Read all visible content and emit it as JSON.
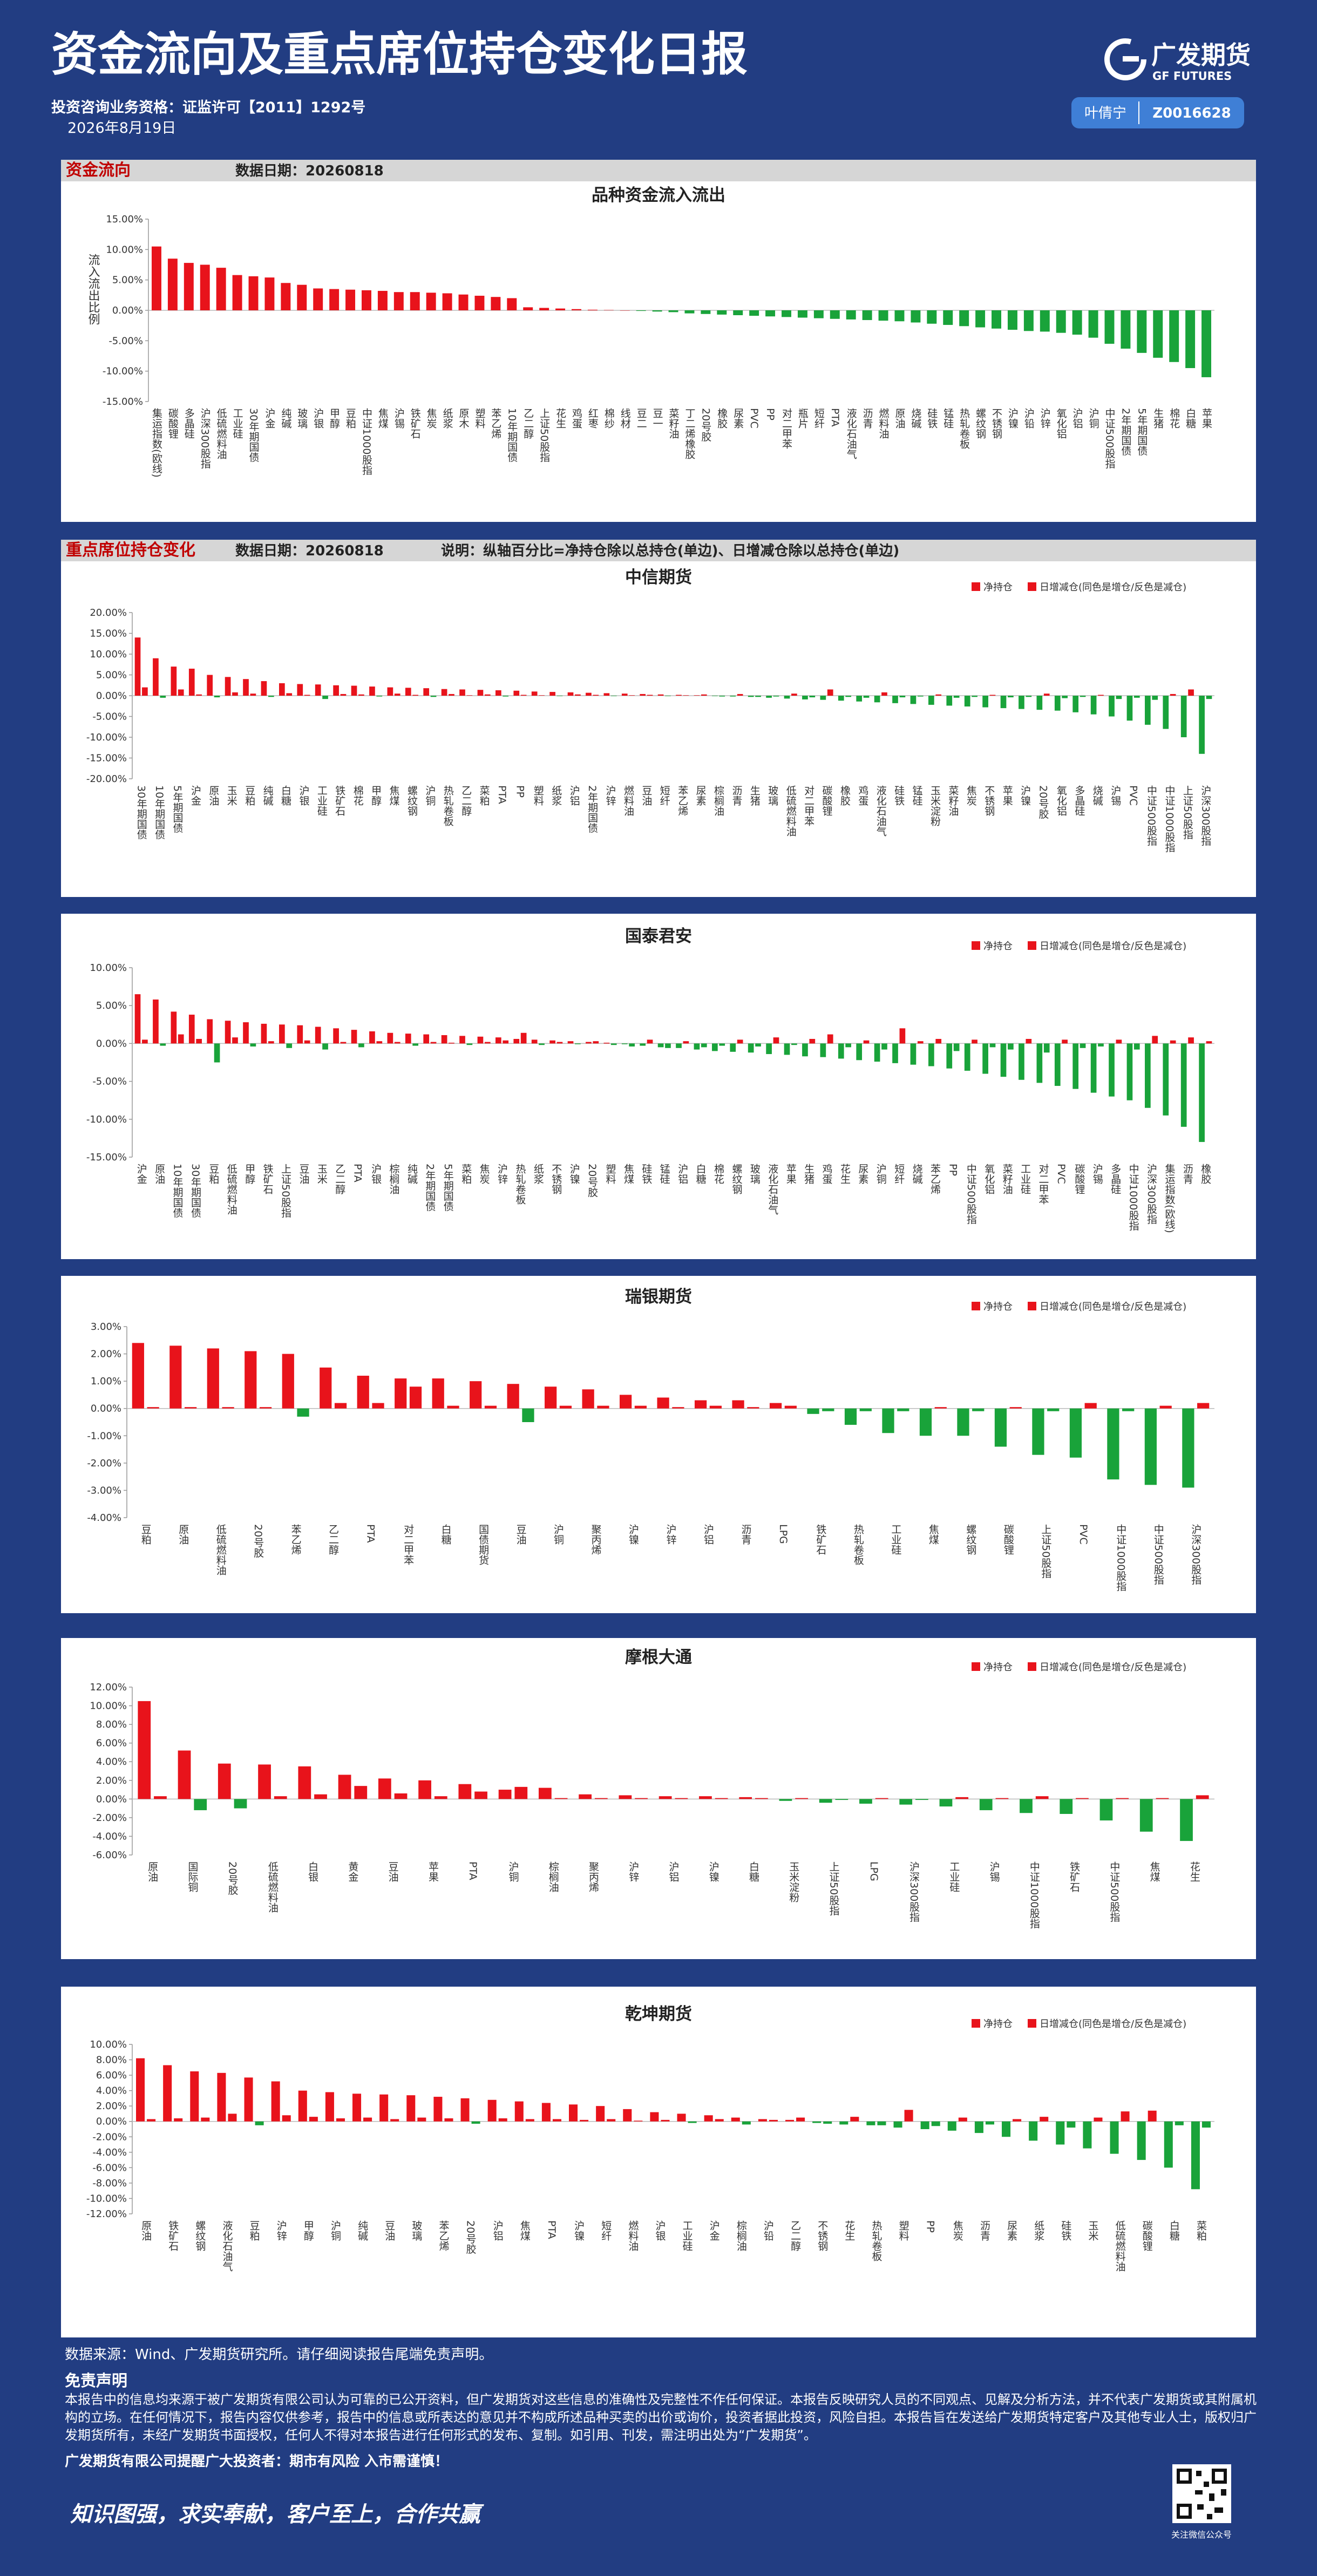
{
  "header": {
    "title": "资金流向及重点席位持仓变化日报",
    "qualification": "投资咨询业务资格：证监许可【2011】1292号",
    "date": "2026年8月19日",
    "logo_cn": "广发期货",
    "logo_en": "GF FUTURES",
    "analyst": "叶倩宁",
    "analyst_id": "Z0016628"
  },
  "sections": [
    {
      "title": "资金流向",
      "date_label": "数据日期：20260818"
    },
    {
      "title": "重点席位持仓变化",
      "date_label": "数据日期：20260818",
      "note": "说明：纵轴百分比=净持仓除以总持仓(单边)、日增减仓除以总持仓(单边)"
    }
  ],
  "chart_data": [
    {
      "type": "bar",
      "title": "品种资金流入流出",
      "y_label": "流入流出比例",
      "color": "#e8131b",
      "negative_color": "#19a33a",
      "ylim": [
        -15,
        15
      ],
      "yticks": [
        {
          "value": 15,
          "label": "15.00%"
        },
        {
          "value": 10,
          "label": "10.00%"
        },
        {
          "value": 5,
          "label": "5.00%"
        },
        {
          "value": 0,
          "label": "0.00%"
        },
        {
          "value": -5,
          "label": "-5.00%"
        },
        {
          "value": -10,
          "label": "-10.00%"
        },
        {
          "value": -15,
          "label": "-15.00%"
        }
      ],
      "categories": [
        "集运指数(欧线)",
        "碳酸锂",
        "多晶硅",
        "沪深300股指",
        "低硫燃料油",
        "工业硅",
        "30年期国债",
        "沪金",
        "纯碱",
        "玻璃",
        "沪银",
        "甲醇",
        "豆粕",
        "中证1000股指",
        "焦煤",
        "沪锡",
        "铁矿石",
        "焦炭",
        "纸浆",
        "原木",
        "塑料",
        "苯乙烯",
        "10年期国债",
        "乙二醇",
        "上证50股指",
        "花生",
        "鸡蛋",
        "红枣",
        "棉纱",
        "线材",
        "豆二",
        "豆一",
        "菜籽油",
        "丁二烯橡胶",
        "20号胶",
        "橡胶",
        "尿素",
        "PVC",
        "PP",
        "对二甲苯",
        "瓶片",
        "短纤",
        "PTA",
        "液化石油气",
        "沥青",
        "燃料油",
        "原油",
        "烧碱",
        "硅铁",
        "锰硅",
        "热轧卷板",
        "螺纹钢",
        "不锈钢",
        "沪镍",
        "沪铅",
        "沪锌",
        "氧化铝",
        "沪铝",
        "沪铜",
        "中证500股指",
        "2年期国债",
        "5年期国债",
        "生猪",
        "棉花",
        "白糖",
        "苹果"
      ],
      "values": [
        10.5,
        8.5,
        7.8,
        7.5,
        7,
        5.8,
        5.6,
        5.4,
        4.5,
        4.2,
        3.6,
        3.5,
        3.4,
        3.3,
        3.2,
        3.0,
        3.0,
        2.9,
        2.8,
        2.6,
        2.4,
        2.2,
        2.0,
        0.5,
        0.4,
        0.3,
        0.2,
        0.1,
        0.05,
        0,
        -0.1,
        -0.2,
        -0.3,
        -0.5,
        -0.6,
        -0.7,
        -0.8,
        -0.9,
        -1.0,
        -1.1,
        -1.2,
        -1.3,
        -1.4,
        -1.5,
        -1.6,
        -1.7,
        -1.8,
        -2.0,
        -2.2,
        -2.4,
        -2.6,
        -2.8,
        -3.0,
        -3.2,
        -3.4,
        -3.5,
        -3.7,
        -4.0,
        -4.5,
        -5.5,
        -6.3,
        -7.0,
        -7.8,
        -8.5,
        -9.5,
        -11.0
      ]
    },
    {
      "type": "bar",
      "title": "中信期货",
      "legend": "upper right",
      "negative_color": "#19a33a",
      "ylim": [
        -20,
        20
      ],
      "yticks": [
        {
          "value": 20,
          "label": "20.00%"
        },
        {
          "value": 15,
          "label": "15.00%"
        },
        {
          "value": 10,
          "label": "10.00%"
        },
        {
          "value": 5,
          "label": "5.00%"
        },
        {
          "value": 0,
          "label": "0.00%"
        },
        {
          "value": -5,
          "label": "-5.00%"
        },
        {
          "value": -10,
          "label": "-10.00%"
        },
        {
          "value": -15,
          "label": "-15.00%"
        },
        {
          "value": -20,
          "label": "-20.00%"
        }
      ],
      "categories": [
        "30年期国债",
        "10年期国债",
        "5年期国债",
        "沪金",
        "原油",
        "玉米",
        "豆粕",
        "纯碱",
        "白糖",
        "沪银",
        "工业硅",
        "铁矿石",
        "棉花",
        "甲醇",
        "焦煤",
        "螺纹钢",
        "沪铜",
        "热轧卷板",
        "乙二醇",
        "菜粕",
        "PTA",
        "PP",
        "塑料",
        "纸浆",
        "沪铝",
        "2年期国债",
        "沪锌",
        "燃料油",
        "豆油",
        "短纤",
        "苯乙烯",
        "尿素",
        "棕榈油",
        "沥青",
        "生猪",
        "玻璃",
        "低硫燃料油",
        "对二甲苯",
        "碳酸锂",
        "橡胶",
        "鸡蛋",
        "液化石油气",
        "硅铁",
        "锰硅",
        "玉米淀粉",
        "菜籽油",
        "焦炭",
        "不锈钢",
        "苹果",
        "沪镍",
        "20号胶",
        "氧化铝",
        "多晶硅",
        "烧碱",
        "沪锡",
        "PVC",
        "中证500股指",
        "中证1000股指",
        "上证50股指",
        "沪深300股指"
      ],
      "series": [
        {
          "name": "净持仓",
          "color": "#e8131b",
          "values": [
            14,
            9,
            7,
            6.5,
            5,
            4.5,
            4,
            3.5,
            3,
            2.8,
            2.7,
            2.5,
            2.4,
            2.2,
            2,
            1.9,
            1.8,
            1.6,
            1.5,
            1.4,
            1.3,
            1.2,
            1.0,
            0.9,
            0.8,
            0.7,
            0.6,
            0.5,
            0.4,
            0.3,
            0.2,
            0.1,
            -0.1,
            -0.2,
            -0.3,
            -0.5,
            -0.7,
            -0.9,
            -1.0,
            -1.2,
            -1.4,
            -1.6,
            -1.8,
            -2.0,
            -2.2,
            -2.4,
            -2.6,
            -2.8,
            -3.0,
            -3.2,
            -3.4,
            -3.6,
            -4.0,
            -4.5,
            -5,
            -6,
            -7,
            -8,
            -10,
            -14
          ]
        },
        {
          "name": "日增减仓(同色是增仓/反色是减仓)",
          "color": "#e8131b",
          "values": [
            2,
            -0.5,
            1.5,
            0.3,
            -0.4,
            0.8,
            0.5,
            -0.3,
            0.6,
            0.2,
            -0.8,
            0.4,
            0.3,
            -0.2,
            0.5,
            0.2,
            -0.3,
            0.4,
            0.1,
            0.3,
            -0.2,
            0.2,
            0.1,
            -0.1,
            0.3,
            0.2,
            -0.1,
            0.1,
            0.2,
            -0.1,
            0.1,
            0.3,
            -0.2,
            0.4,
            -0.3,
            -0.2,
            0.5,
            -0.4,
            1.5,
            -0.3,
            -0.5,
            0.8,
            -0.4,
            -0.2,
            0.3,
            -0.5,
            -0.3,
            0.2,
            -0.4,
            -0.3,
            0.5,
            -0.6,
            -0.3,
            0.2,
            -0.8,
            -0.5,
            -1,
            0.4,
            1.5,
            -0.8
          ]
        }
      ]
    },
    {
      "type": "bar",
      "title": "国泰君安",
      "legend": "upper right",
      "negative_color": "#19a33a",
      "ylim": [
        -15,
        10
      ],
      "yticks": [
        {
          "value": 10,
          "label": "10.00%"
        },
        {
          "value": 5,
          "label": "5.00%"
        },
        {
          "value": 0,
          "label": "0.00%"
        },
        {
          "value": -5,
          "label": "-5.00%"
        },
        {
          "value": -10,
          "label": "-10.00%"
        },
        {
          "value": -15,
          "label": "-15.00%"
        }
      ],
      "categories": [
        "沪金",
        "原油",
        "10年期国债",
        "30年期国债",
        "豆粕",
        "低硫燃料油",
        "甲醇",
        "铁矿石",
        "上证50股指",
        "豆油",
        "玉米",
        "乙二醇",
        "PTA",
        "沪银",
        "棕榈油",
        "纯碱",
        "2年期国债",
        "5年期国债",
        "菜粕",
        "焦炭",
        "沪锌",
        "热轧卷板",
        "纸浆",
        "不锈钢",
        "沪镍",
        "20号胶",
        "塑料",
        "焦煤",
        "硅铁",
        "锰硅",
        "沪铝",
        "白糖",
        "棉花",
        "螺纹钢",
        "玻璃",
        "液化石油气",
        "苹果",
        "生猪",
        "鸡蛋",
        "花生",
        "尿素",
        "沪铜",
        "短纤",
        "烧碱",
        "苯乙烯",
        "PP",
        "中证500股指",
        "氧化铝",
        "菜籽油",
        "工业硅",
        "对二甲苯",
        "PVC",
        "碳酸锂",
        "沪锡",
        "多晶硅",
        "中证1000股指",
        "沪深300股指",
        "集运指数(欧线)",
        "沥青",
        "橡胶"
      ],
      "series": [
        {
          "name": "净持仓",
          "color": "#e8131b",
          "values": [
            6.5,
            5.8,
            4.2,
            3.8,
            3.2,
            3,
            2.8,
            2.6,
            2.5,
            2.4,
            2.2,
            2,
            1.8,
            1.6,
            1.4,
            1.3,
            1.2,
            1.1,
            1,
            0.9,
            0.8,
            0.6,
            0.5,
            0.4,
            0.3,
            0.2,
            0.1,
            -0.1,
            -0.3,
            -0.5,
            -0.6,
            -0.8,
            -1,
            -1.1,
            -1.2,
            -1.4,
            -1.5,
            -1.7,
            -1.8,
            -2,
            -2.2,
            -2.4,
            -2.6,
            -2.8,
            -3,
            -3.3,
            -3.6,
            -4,
            -4.4,
            -4.8,
            -5.2,
            -5.6,
            -6,
            -6.5,
            -7,
            -7.5,
            -8.5,
            -9.5,
            -11,
            -13
          ]
        },
        {
          "name": "日增减仓(同色是增仓/反色是减仓)",
          "color": "#e8131b",
          "values": [
            0.5,
            -0.3,
            1.2,
            0.6,
            -2.5,
            0.8,
            -0.4,
            0.3,
            -0.6,
            0.4,
            -0.8,
            0.2,
            -0.5,
            0.3,
            0.2,
            -0.3,
            0.2,
            0.1,
            -0.2,
            0.2,
            0.4,
            1.4,
            -0.2,
            0.2,
            -0.1,
            0.3,
            -0.2,
            -0.4,
            0.5,
            -0.6,
            0.3,
            -0.5,
            -0.3,
            0.5,
            -0.4,
            0.8,
            -0.2,
            0.6,
            1.2,
            -0.5,
            0.4,
            -0.8,
            2,
            0.3,
            0.6,
            -1,
            0.5,
            -0.5,
            -0.8,
            0.6,
            -1.2,
            0.5,
            -0.6,
            -0.4,
            0.5,
            -0.8,
            1,
            0.4,
            0.8,
            0.3
          ]
        }
      ]
    },
    {
      "type": "bar",
      "title": "瑞银期货",
      "legend": "upper right",
      "negative_color": "#19a33a",
      "ylim": [
        -4,
        3
      ],
      "yticks": [
        {
          "value": 3,
          "label": "3.00%"
        },
        {
          "value": 2,
          "label": "2.00%"
        },
        {
          "value": 1,
          "label": "1.00%"
        },
        {
          "value": 0,
          "label": "0.00%"
        },
        {
          "value": -1,
          "label": "-1.00%"
        },
        {
          "value": -2,
          "label": "-2.00%"
        },
        {
          "value": -3,
          "label": "-3.00%"
        },
        {
          "value": -4,
          "label": "-4.00%"
        }
      ],
      "categories": [
        "豆粕",
        "原油",
        "低硫燃料油",
        "20号胶",
        "苯乙烯",
        "乙二醇",
        "PTA",
        "对二甲苯",
        "白糖",
        "国债期货",
        "豆油",
        "沪铜",
        "聚丙烯",
        "沪镍",
        "沪锌",
        "沪铝",
        "沥青",
        "LPG",
        "铁矿石",
        "热轧卷板",
        "工业硅",
        "焦煤",
        "螺纹钢",
        "碳酸锂",
        "上证50股指",
        "PVC",
        "中证1000股指",
        "中证500股指",
        "沪深300股指"
      ],
      "series": [
        {
          "name": "净持仓",
          "color": "#e8131b",
          "values": [
            2.4,
            2.3,
            2.2,
            2.1,
            2.0,
            1.5,
            1.2,
            1.1,
            1.1,
            1.0,
            0.9,
            0.8,
            0.7,
            0.5,
            0.4,
            0.3,
            0.3,
            0.2,
            -0.2,
            -0.6,
            -0.9,
            -1.0,
            -1.0,
            -1.4,
            -1.7,
            -1.8,
            -2.6,
            -2.8,
            -2.9
          ]
        },
        {
          "name": "日增减仓(同色是增仓/反色是减仓)",
          "color": "#e8131b",
          "values": [
            0.05,
            0.05,
            0.05,
            0.05,
            -0.3,
            0.2,
            0.2,
            0.8,
            0.1,
            0.1,
            -0.5,
            0.1,
            0.1,
            0.1,
            0.05,
            0.1,
            0.05,
            0.1,
            -0.1,
            -0.1,
            -0.1,
            0.05,
            -0.1,
            0.05,
            -0.1,
            0.2,
            -0.1,
            0.1,
            0.2
          ]
        }
      ]
    },
    {
      "type": "bar",
      "title": "摩根大通",
      "legend": "upper right",
      "negative_color": "#19a33a",
      "ylim": [
        -6,
        12
      ],
      "yticks": [
        {
          "value": 12,
          "label": "12.00%"
        },
        {
          "value": 10,
          "label": "10.00%"
        },
        {
          "value": 8,
          "label": "8.00%"
        },
        {
          "value": 6,
          "label": "6.00%"
        },
        {
          "value": 4,
          "label": "4.00%"
        },
        {
          "value": 2,
          "label": "2.00%"
        },
        {
          "value": 0,
          "label": "0.00%"
        },
        {
          "value": -2,
          "label": "-2.00%"
        },
        {
          "value": -4,
          "label": "-4.00%"
        },
        {
          "value": -6,
          "label": "-6.00%"
        }
      ],
      "categories": [
        "原油",
        "国际铜",
        "20号胶",
        "低硫燃料油",
        "白银",
        "黄金",
        "豆油",
        "苹果",
        "PTA",
        "沪铜",
        "棕榈油",
        "聚丙烯",
        "沪锌",
        "沪铝",
        "沪镍",
        "白糖",
        "玉米淀粉",
        "上证50股指",
        "LPG",
        "沪深300股指",
        "工业硅",
        "沪锡",
        "中证1000股指",
        "铁矿石",
        "中证500股指",
        "焦煤",
        "花生"
      ],
      "series": [
        {
          "name": "净持仓",
          "color": "#e8131b",
          "values": [
            10.5,
            5.2,
            3.8,
            3.7,
            3.5,
            2.6,
            2.2,
            2.0,
            1.6,
            1.0,
            1.2,
            0.5,
            0.4,
            0.3,
            0.3,
            0.2,
            -0.2,
            -0.4,
            -0.5,
            -0.6,
            -0.8,
            -1.2,
            -1.5,
            -1.6,
            -2.3,
            -3.5,
            -4.5
          ]
        },
        {
          "name": "日增减仓(同色是增仓/反色是减仓)",
          "color": "#e8131b",
          "values": [
            0.3,
            -1.2,
            -1.0,
            0.3,
            0.5,
            1.4,
            0.6,
            0.3,
            0.8,
            1.3,
            0.1,
            0.1,
            0.1,
            0.1,
            0.1,
            0.1,
            0.1,
            -0.1,
            0.1,
            -0.1,
            0.2,
            0.1,
            0.3,
            0.1,
            0.1,
            0.1,
            0.4
          ]
        }
      ]
    },
    {
      "type": "bar",
      "title": "乾坤期货",
      "legend": "upper right",
      "negative_color": "#19a33a",
      "ylim": [
        -12,
        10
      ],
      "yticks": [
        {
          "value": 10,
          "label": "10.00%"
        },
        {
          "value": 8,
          "label": "8.00%"
        },
        {
          "value": 6,
          "label": "6.00%"
        },
        {
          "value": 4,
          "label": "4.00%"
        },
        {
          "value": 2,
          "label": "2.00%"
        },
        {
          "value": 0,
          "label": "0.00%"
        },
        {
          "value": -2,
          "label": "-2.00%"
        },
        {
          "value": -4,
          "label": "-4.00%"
        },
        {
          "value": -6,
          "label": "-6.00%"
        },
        {
          "value": -8,
          "label": "-8.00%"
        },
        {
          "value": -10,
          "label": "-10.00%"
        },
        {
          "value": -12,
          "label": "-12.00%"
        }
      ],
      "categories": [
        "原油",
        "铁矿石",
        "螺纹钢",
        "液化石油气",
        "豆粕",
        "沪锌",
        "甲醇",
        "沪铜",
        "纯碱",
        "豆油",
        "玻璃",
        "苯乙烯",
        "20号胶",
        "沪铝",
        "焦煤",
        "PTA",
        "沪镍",
        "短纤",
        "燃料油",
        "沪银",
        "工业硅",
        "沪金",
        "棕榈油",
        "沪铅",
        "乙二醇",
        "不锈钢",
        "花生",
        "热轧卷板",
        "塑料",
        "PP",
        "焦炭",
        "沥青",
        "尿素",
        "纸浆",
        "硅铁",
        "玉米",
        "低硫燃料油",
        "碳酸锂",
        "白糖",
        "菜粕"
      ],
      "series": [
        {
          "name": "净持仓",
          "color": "#e8131b",
          "values": [
            8.2,
            7.3,
            6.5,
            6.3,
            5.7,
            5.2,
            4.0,
            3.8,
            3.6,
            3.5,
            3.4,
            3.2,
            3.0,
            2.8,
            2.6,
            2.4,
            2.2,
            2.0,
            1.6,
            1.2,
            1.0,
            0.8,
            0.5,
            0.3,
            0.2,
            -0.2,
            -0.4,
            -0.5,
            -0.8,
            -1.0,
            -1.2,
            -1.5,
            -2.0,
            -2.5,
            -3,
            -3.5,
            -4.2,
            -5,
            -6,
            -8.8
          ]
        },
        {
          "name": "日增减仓(同色是增仓/反色是减仓)",
          "color": "#e8131b",
          "values": [
            0.3,
            0.4,
            0.5,
            1.0,
            -0.5,
            0.8,
            0.6,
            0.4,
            0.5,
            0.3,
            0.5,
            0.4,
            -0.3,
            0.4,
            0.3,
            0.3,
            0.2,
            0.3,
            0.1,
            0.2,
            -0.2,
            0.3,
            -0.4,
            0.2,
            0.5,
            -0.3,
            0.6,
            -0.5,
            1.5,
            -0.6,
            0.5,
            -0.4,
            0.3,
            0.6,
            -0.8,
            0.5,
            1.3,
            1.4,
            -0.5,
            -0.8
          ]
        }
      ]
    }
  ],
  "footer": {
    "source": "数据来源：Wind、广发期货研究所。请仔细阅读报告尾端免责声明。",
    "disclaimer_title": "免责声明",
    "disclaimer": "本报告中的信息均来源于被广发期货有限公司认为可靠的已公开资料，但广发期货对这些信息的准确性及完整性不作任何保证。本报告反映研究人员的不同观点、见解及分析方法，并不代表广发期货或其附属机构的立场。在任何情况下，报告内容仅供参考，报告中的信息或所表达的意见并不构成所述品种买卖的出价或询价，投资者据此投资，风险自担。本报告旨在发送给广发期货特定客户及其他专业人士，版权归广发期货所有，未经广发期货书面授权，任何人不得对本报告进行任何形式的发布、复制。如引用、刊发，需注明出处为“广发期货”。",
    "reminder": "广发期货有限公司提醒广大投资者：期市有风险 入市需谨慎！",
    "slogan": "知识图强，求实奉献，客户至上，合作共赢",
    "qr_caption": "关注微信公众号"
  }
}
